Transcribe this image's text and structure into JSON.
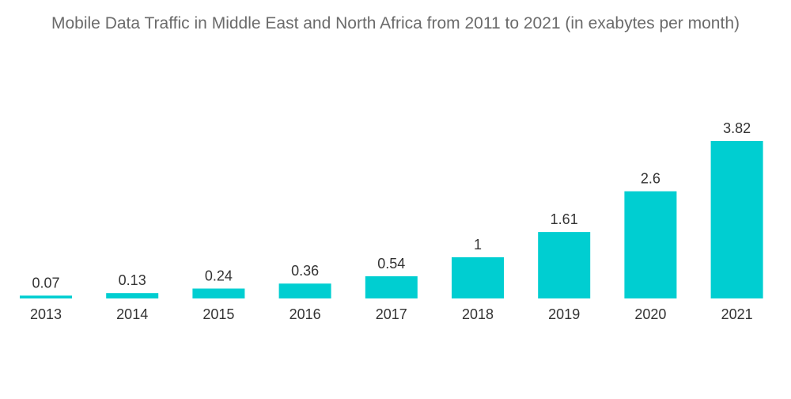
{
  "chart_data": {
    "type": "bar",
    "title": "Mobile Data Traffic in Middle East and North Africa from 2011 to 2021 (in exabytes per month)",
    "categories": [
      "2013",
      "2014",
      "2015",
      "2016",
      "2017",
      "2018",
      "2019",
      "2020",
      "2021"
    ],
    "values": [
      0.07,
      0.13,
      0.24,
      0.36,
      0.54,
      1,
      1.61,
      2.6,
      3.82
    ],
    "value_labels": [
      "0.07",
      "0.13",
      "0.24",
      "0.36",
      "0.54",
      "1",
      "1.61",
      "2.6",
      "3.82"
    ],
    "xlabel": "",
    "ylabel": "",
    "ylim": [
      0,
      3.82
    ],
    "grid": false,
    "legend": "none",
    "bar_color": "#00ced1"
  }
}
